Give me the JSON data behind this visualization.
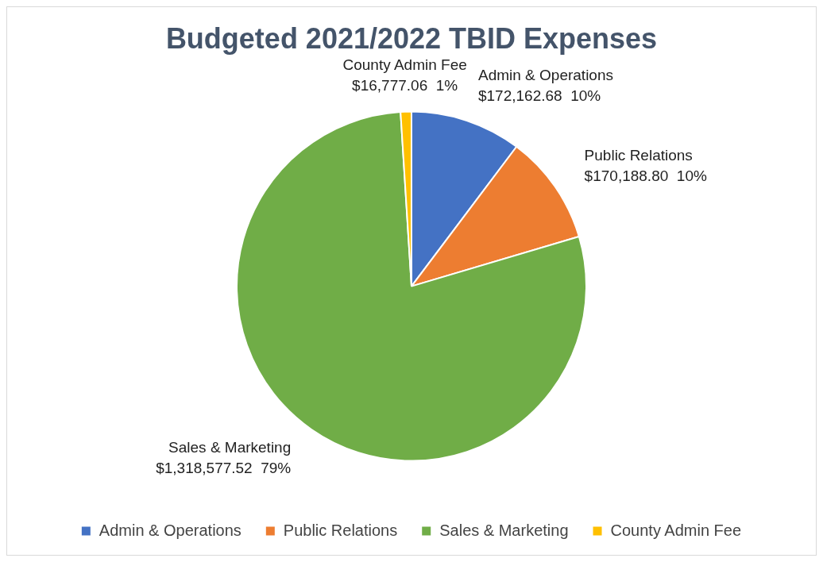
{
  "chart_data": {
    "type": "pie",
    "title": "Budgeted 2021/2022 TBID Expenses",
    "categories": [
      "Admin & Operations",
      "Public Relations",
      "Sales & Marketing",
      "County Admin Fee"
    ],
    "values": [
      172162.68,
      170188.8,
      1318577.52,
      16777.06
    ],
    "value_labels": [
      "$172,162.68  10%",
      "$170,188.80  10%",
      "$1,318,577.52  79%",
      "$16,777.06  1%"
    ],
    "colors": [
      "#4472c4",
      "#ed7d31",
      "#70ad47",
      "#ffc000"
    ],
    "legend": "bottom"
  }
}
